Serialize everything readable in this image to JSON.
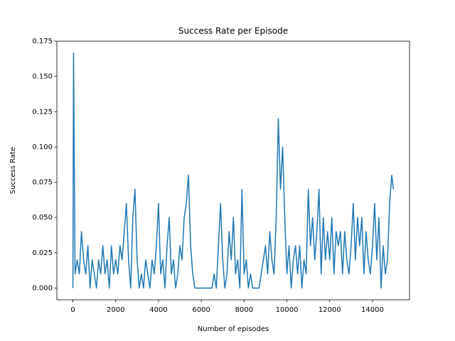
{
  "chart_data": {
    "type": "line",
    "title": "Success Rate per Episode",
    "x_label": "Number of episodes",
    "y_label": "Success Rate",
    "x": [
      0,
      30,
      100,
      200,
      300,
      400,
      500,
      600,
      700,
      800,
      900,
      1000,
      1100,
      1200,
      1300,
      1400,
      1500,
      1600,
      1700,
      1800,
      1900,
      2000,
      2100,
      2200,
      2300,
      2400,
      2500,
      2600,
      2700,
      2800,
      2900,
      3000,
      3100,
      3200,
      3300,
      3400,
      3500,
      3600,
      3700,
      3800,
      3900,
      4000,
      4100,
      4200,
      4300,
      4400,
      4500,
      4600,
      4700,
      4800,
      4900,
      5000,
      5100,
      5200,
      5300,
      5400,
      5500,
      5600,
      5700,
      5800,
      5900,
      6000,
      6100,
      6200,
      6300,
      6400,
      6500,
      6600,
      6700,
      6800,
      6900,
      7000,
      7100,
      7200,
      7300,
      7400,
      7500,
      7600,
      7700,
      7800,
      7900,
      8000,
      8100,
      8200,
      8300,
      8400,
      8500,
      8600,
      8700,
      8800,
      8900,
      9000,
      9100,
      9200,
      9300,
      9400,
      9500,
      9600,
      9700,
      9800,
      9900,
      10000,
      10100,
      10200,
      10300,
      10400,
      10500,
      10600,
      10700,
      10800,
      10900,
      11000,
      11100,
      11200,
      11300,
      11400,
      11500,
      11600,
      11700,
      11800,
      11900,
      12000,
      12100,
      12200,
      12300,
      12400,
      12500,
      12600,
      12700,
      12800,
      12900,
      13000,
      13100,
      13200,
      13300,
      13400,
      13500,
      13600,
      13700,
      13800,
      13900,
      14000,
      14100,
      14200,
      14300,
      14400,
      14500,
      14600,
      14700,
      14800,
      14900,
      14980
    ],
    "series": [
      {
        "name": "Success Rate",
        "color": "#1f77b4",
        "values": [
          0,
          0.1667,
          0.01,
          0.02,
          0.01,
          0.04,
          0.02,
          0.01,
          0.03,
          0,
          0.02,
          0.01,
          0,
          0.02,
          0.01,
          0.03,
          0.01,
          0.02,
          0,
          0.03,
          0.01,
          0.02,
          0.01,
          0.03,
          0.02,
          0.04,
          0.06,
          0.02,
          0,
          0.05,
          0.07,
          0.02,
          0,
          0.01,
          0,
          0.02,
          0.01,
          0,
          0.02,
          0.01,
          0.03,
          0.06,
          0.01,
          0.02,
          0,
          0.03,
          0.05,
          0.01,
          0.02,
          0,
          0.01,
          0.03,
          0.02,
          0.05,
          0.06,
          0.08,
          0.03,
          0.01,
          0,
          0,
          0,
          0,
          0,
          0,
          0,
          0,
          0,
          0.01,
          0,
          0.03,
          0.06,
          0.02,
          0,
          0.01,
          0.04,
          0.02,
          0.05,
          0.01,
          0.02,
          0,
          0.07,
          0.01,
          0.02,
          0,
          0.01,
          0,
          0,
          0,
          0,
          0.01,
          0.02,
          0.03,
          0.01,
          0.04,
          0.02,
          0.01,
          0.05,
          0.12,
          0.07,
          0.1,
          0.05,
          0.01,
          0.03,
          0,
          0.02,
          0.03,
          0.01,
          0.03,
          0,
          0.02,
          0.01,
          0.07,
          0.03,
          0.05,
          0.02,
          0.04,
          0.07,
          0.01,
          0.05,
          0.02,
          0.04,
          0.02,
          0.05,
          0.01,
          0.04,
          0.03,
          0.04,
          0.01,
          0.04,
          0.02,
          0.01,
          0.03,
          0.06,
          0.02,
          0.05,
          0.03,
          0.05,
          0.01,
          0.04,
          0.02,
          0.01,
          0.03,
          0.06,
          0.02,
          0.05,
          0,
          0.03,
          0.01,
          0.02,
          0.06,
          0.08,
          0.07
        ]
      }
    ],
    "xlim": [
      -749,
      15729
    ],
    "ylim": [
      -0.00833,
      0.175
    ],
    "xticks": [
      0,
      2000,
      4000,
      6000,
      8000,
      10000,
      12000,
      14000
    ],
    "yticks": [
      {
        "value": 0,
        "label": "0.000"
      },
      {
        "value": 0.025,
        "label": "0.025"
      },
      {
        "value": 0.05,
        "label": "0.050"
      },
      {
        "value": 0.075,
        "label": "0.075"
      },
      {
        "value": 0.1,
        "label": "0.100"
      },
      {
        "value": 0.125,
        "label": "0.125"
      },
      {
        "value": 0.15,
        "label": "0.150"
      },
      {
        "value": 0.175,
        "label": "0.175"
      }
    ],
    "grid": false
  }
}
